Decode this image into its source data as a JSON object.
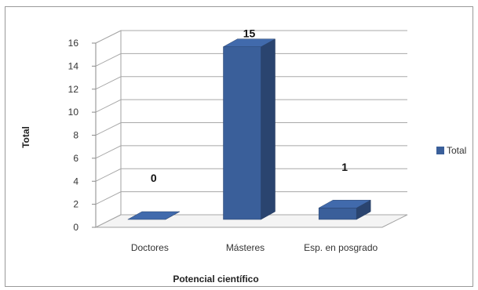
{
  "chart_data": {
    "type": "bar",
    "style": "3d-column",
    "categories": [
      "Doctores",
      "Másteres",
      "Esp. en posgrado"
    ],
    "series": [
      {
        "name": "Total",
        "values": [
          0,
          15,
          1
        ],
        "color": "#3a5f9a"
      }
    ],
    "data_labels": [
      "0",
      "15",
      "1"
    ],
    "xlabel": "Potencial científico",
    "ylabel": "Total",
    "ylim": [
      0,
      16
    ],
    "yticks": [
      0,
      2,
      4,
      6,
      8,
      10,
      12,
      14,
      16
    ],
    "grid": true,
    "legend_position": "right"
  }
}
